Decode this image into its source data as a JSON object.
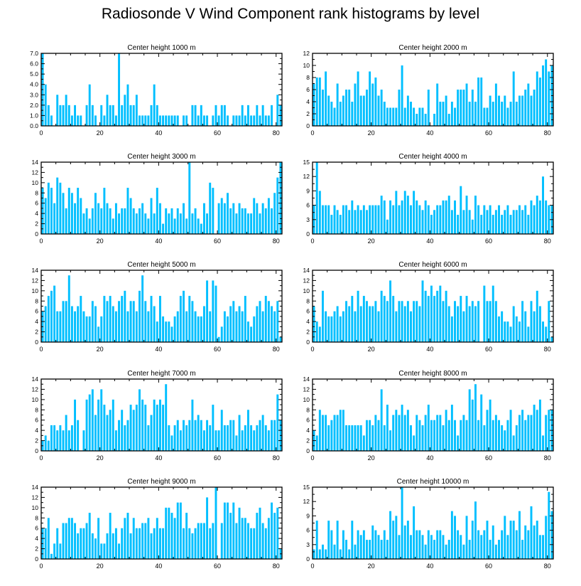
{
  "title": "Radiosonde V Wind Component rank histograms by level",
  "colors": {
    "bar": "#00bfff",
    "axis": "#000000",
    "background": "#ffffff"
  },
  "chart_data": [
    {
      "type": "bar",
      "title": "Center height 1000 m",
      "xlim": [
        0,
        82
      ],
      "xticks": [
        0,
        20,
        40,
        60,
        80
      ],
      "ylim": [
        0,
        7
      ],
      "yticks": [
        "0.0",
        "1.0",
        "2.0",
        "3.0",
        "4.0",
        "5.0",
        "6.0",
        "7.0"
      ],
      "ytick_values": [
        0,
        1,
        2,
        3,
        4,
        5,
        6,
        7
      ],
      "values": [
        7,
        4,
        2,
        1,
        0,
        3,
        2,
        2,
        3,
        2,
        1,
        2,
        1,
        1,
        0,
        2,
        4,
        2,
        1,
        0,
        2,
        1,
        3,
        2,
        2,
        1,
        7,
        2,
        3,
        4,
        2,
        2,
        3,
        1,
        1,
        1,
        1,
        2,
        4,
        2,
        1,
        1,
        1,
        1,
        1,
        1,
        1,
        0,
        1,
        1,
        0,
        2,
        2,
        1,
        2,
        1,
        1,
        0,
        1,
        2,
        1,
        2,
        2,
        1,
        0,
        1,
        1,
        1,
        2,
        1,
        2,
        1,
        1,
        2,
        1,
        2,
        1,
        1,
        2,
        0,
        3,
        2
      ]
    },
    {
      "type": "bar",
      "title": "Center height 2000 m",
      "xlim": [
        0,
        82
      ],
      "xticks": [
        0,
        20,
        40,
        60,
        80
      ],
      "ylim": [
        0,
        12
      ],
      "yticks": [
        "0",
        "2",
        "4",
        "6",
        "8",
        "10",
        "12"
      ],
      "ytick_values": [
        0,
        2,
        4,
        6,
        8,
        10,
        12
      ],
      "values": [
        7,
        8,
        8,
        6,
        9,
        5,
        4,
        3,
        7,
        4,
        5,
        6,
        6,
        4,
        7,
        9,
        5,
        5,
        6,
        9,
        7,
        8,
        5,
        6,
        4,
        3,
        3,
        3,
        3,
        6,
        10,
        3,
        5,
        4,
        3,
        2,
        3,
        3,
        2,
        6,
        0,
        2,
        7,
        4,
        4,
        5,
        2,
        4,
        3,
        6,
        6,
        6,
        7,
        4,
        6,
        4,
        8,
        8,
        3,
        3,
        5,
        4,
        7,
        5,
        4,
        5,
        3,
        4,
        9,
        4,
        5,
        5,
        6,
        7,
        5,
        6,
        9,
        8,
        10,
        11,
        9,
        10
      ]
    },
    {
      "type": "bar",
      "title": "Center height 3000 m",
      "xlim": [
        0,
        82
      ],
      "xticks": [
        0,
        20,
        40,
        60,
        80
      ],
      "ylim": [
        0,
        14
      ],
      "yticks": [
        "0",
        "2",
        "4",
        "6",
        "8",
        "10",
        "12",
        "14"
      ],
      "ytick_values": [
        0,
        2,
        4,
        6,
        8,
        10,
        12,
        14
      ],
      "values": [
        9,
        7,
        10,
        9,
        6,
        11,
        10,
        8,
        5,
        9,
        8,
        6,
        9,
        7,
        4,
        5,
        3,
        5,
        8,
        6,
        5,
        9,
        6,
        5,
        3,
        6,
        4,
        5,
        5,
        9,
        7,
        5,
        4,
        5,
        6,
        4,
        3,
        7,
        4,
        9,
        6,
        2,
        5,
        4,
        5,
        3,
        5,
        4,
        6,
        3,
        14,
        4,
        5,
        3,
        2,
        6,
        4,
        10,
        9,
        0,
        6,
        7,
        6,
        8,
        5,
        6,
        4,
        6,
        5,
        5,
        4,
        4,
        7,
        6,
        4,
        6,
        5,
        7,
        5,
        8,
        11,
        14
      ]
    },
    {
      "type": "bar",
      "title": "Center height 4000 m",
      "xlim": [
        0,
        82
      ],
      "xticks": [
        0,
        20,
        40,
        60,
        80
      ],
      "ylim": [
        0,
        15
      ],
      "yticks": [
        "0",
        "3",
        "6",
        "9",
        "12",
        "15"
      ],
      "ytick_values": [
        0,
        3,
        6,
        9,
        12,
        15
      ],
      "values": [
        6,
        15,
        9,
        6,
        6,
        6,
        4,
        6,
        5,
        4,
        6,
        6,
        5,
        7,
        5,
        6,
        5,
        6,
        5,
        6,
        6,
        6,
        6,
        8,
        7,
        3,
        7,
        6,
        9,
        6,
        7,
        9,
        8,
        6,
        9,
        7,
        6,
        5,
        7,
        6,
        4,
        5,
        6,
        6,
        7,
        7,
        8,
        5,
        7,
        4,
        10,
        5,
        8,
        5,
        3,
        8,
        6,
        4,
        6,
        5,
        6,
        4,
        5,
        6,
        4,
        5,
        6,
        4,
        5,
        5,
        6,
        5,
        6,
        4,
        7,
        6,
        8,
        7,
        12,
        7,
        6,
        6
      ]
    },
    {
      "type": "bar",
      "title": "Center height 5000 m",
      "xlim": [
        0,
        82
      ],
      "xticks": [
        0,
        20,
        40,
        60,
        80
      ],
      "ylim": [
        0,
        14
      ],
      "yticks": [
        "0",
        "2",
        "4",
        "6",
        "8",
        "10",
        "12",
        "14"
      ],
      "ytick_values": [
        0,
        2,
        4,
        6,
        8,
        10,
        12,
        14
      ],
      "values": [
        6,
        7,
        9,
        10,
        11,
        6,
        6,
        8,
        8,
        13,
        7,
        6,
        7,
        9,
        6,
        5,
        5,
        8,
        7,
        3,
        5,
        9,
        8,
        9,
        7,
        6,
        8,
        9,
        10,
        6,
        8,
        8,
        6,
        10,
        13,
        8,
        6,
        9,
        7,
        4,
        9,
        5,
        4,
        4,
        3,
        5,
        6,
        9,
        10,
        6,
        9,
        8,
        6,
        5,
        5,
        7,
        12,
        6,
        12,
        11,
        1,
        3,
        6,
        5,
        7,
        8,
        6,
        7,
        6,
        9,
        4,
        3,
        5,
        7,
        8,
        6,
        9,
        8,
        7,
        6,
        8,
        1
      ]
    },
    {
      "type": "bar",
      "title": "Center height 6000 m",
      "xlim": [
        0,
        82
      ],
      "xticks": [
        0,
        20,
        40,
        60,
        80
      ],
      "ylim": [
        0,
        14
      ],
      "yticks": [
        "0",
        "2",
        "4",
        "6",
        "8",
        "10",
        "12",
        "14"
      ],
      "ytick_values": [
        0,
        2,
        4,
        6,
        8,
        10,
        12,
        14
      ],
      "values": [
        7,
        4,
        3,
        10,
        6,
        5,
        5,
        6,
        7,
        5,
        6,
        8,
        7,
        9,
        6,
        10,
        7,
        9,
        8,
        7,
        7,
        8,
        6,
        10,
        9,
        8,
        12,
        9,
        6,
        8,
        8,
        7,
        8,
        6,
        8,
        8,
        7,
        12,
        10,
        9,
        11,
        9,
        10,
        11,
        8,
        10,
        7,
        5,
        8,
        7,
        9,
        6,
        9,
        7,
        8,
        7,
        8,
        0,
        11,
        8,
        8,
        11,
        8,
        5,
        6,
        4,
        4,
        3,
        7,
        5,
        4,
        8,
        6,
        3,
        8,
        6,
        10,
        7,
        4,
        3,
        8,
        1
      ]
    },
    {
      "type": "bar",
      "title": "Center height 7000 m",
      "xlim": [
        0,
        82
      ],
      "xticks": [
        0,
        20,
        40,
        60,
        80
      ],
      "ylim": [
        0,
        14
      ],
      "yticks": [
        "0",
        "2",
        "4",
        "6",
        "8",
        "10",
        "12",
        "14"
      ],
      "ytick_values": [
        0,
        2,
        4,
        6,
        8,
        10,
        12,
        14
      ],
      "values": [
        2,
        3,
        2,
        5,
        5,
        4,
        5,
        4,
        7,
        4,
        5,
        10,
        6,
        0,
        4,
        10,
        11,
        12,
        7,
        10,
        12,
        9,
        7,
        8,
        10,
        4,
        6,
        8,
        5,
        6,
        9,
        8,
        9,
        12,
        10,
        9,
        5,
        7,
        10,
        9,
        10,
        9,
        13,
        5,
        3,
        5,
        6,
        4,
        6,
        5,
        6,
        10,
        6,
        7,
        6,
        4,
        6,
        5,
        9,
        4,
        4,
        8,
        5,
        5,
        6,
        6,
        3,
        7,
        4,
        5,
        8,
        5,
        4,
        5,
        6,
        7,
        5,
        4,
        6,
        6,
        11,
        6
      ]
    },
    {
      "type": "bar",
      "title": "Center height 8000 m",
      "xlim": [
        0,
        82
      ],
      "xticks": [
        0,
        20,
        40,
        60,
        80
      ],
      "ylim": [
        0,
        14
      ],
      "yticks": [
        "0",
        "2",
        "4",
        "6",
        "8",
        "10",
        "12",
        "14"
      ],
      "ytick_values": [
        0,
        2,
        4,
        6,
        8,
        10,
        12,
        14
      ],
      "values": [
        4,
        3,
        8,
        7,
        7,
        5,
        6,
        7,
        7,
        8,
        8,
        5,
        5,
        5,
        5,
        5,
        5,
        3,
        6,
        6,
        5,
        7,
        6,
        12,
        5,
        9,
        4,
        7,
        8,
        7,
        9,
        7,
        8,
        5,
        3,
        7,
        6,
        5,
        7,
        9,
        6,
        6,
        7,
        7,
        5,
        8,
        6,
        9,
        6,
        3,
        6,
        7,
        6,
        12,
        10,
        13,
        6,
        11,
        5,
        8,
        10,
        6,
        7,
        6,
        5,
        4,
        6,
        8,
        3,
        5,
        7,
        8,
        6,
        7,
        7,
        9,
        8,
        10,
        3,
        7,
        8,
        8
      ]
    },
    {
      "type": "bar",
      "title": "Center height 9000 m",
      "xlim": [
        0,
        82
      ],
      "xticks": [
        0,
        20,
        40,
        60,
        80
      ],
      "ylim": [
        0,
        14
      ],
      "yticks": [
        "0",
        "2",
        "4",
        "6",
        "8",
        "10",
        "12",
        "14"
      ],
      "ytick_values": [
        0,
        2,
        4,
        6,
        8,
        10,
        12,
        14
      ],
      "values": [
        6,
        6,
        8,
        1,
        3,
        6,
        3,
        7,
        7,
        8,
        8,
        7,
        5,
        6,
        6,
        7,
        9,
        5,
        4,
        8,
        3,
        3,
        5,
        9,
        5,
        6,
        3,
        6,
        8,
        9,
        5,
        8,
        6,
        6,
        7,
        7,
        8,
        5,
        6,
        8,
        6,
        6,
        10,
        10,
        9,
        8,
        11,
        11,
        6,
        9,
        6,
        5,
        6,
        7,
        7,
        7,
        12,
        6,
        7,
        14,
        0,
        7,
        11,
        11,
        9,
        11,
        7,
        10,
        8,
        8,
        7,
        6,
        6,
        9,
        10,
        7,
        6,
        8,
        11,
        9,
        10,
        2
      ]
    },
    {
      "type": "bar",
      "title": "Center height 10000 m",
      "xlim": [
        0,
        82
      ],
      "xticks": [
        0,
        20,
        40,
        60,
        80
      ],
      "ylim": [
        0,
        15
      ],
      "yticks": [
        "0",
        "3",
        "6",
        "9",
        "12",
        "15"
      ],
      "ytick_values": [
        0,
        3,
        6,
        9,
        12,
        15
      ],
      "values": [
        2,
        8,
        2,
        3,
        2,
        8,
        6,
        3,
        8,
        2,
        6,
        4,
        2,
        8,
        3,
        6,
        5,
        6,
        4,
        4,
        7,
        6,
        5,
        4,
        6,
        4,
        10,
        8,
        9,
        5,
        15,
        7,
        8,
        5,
        11,
        6,
        6,
        5,
        3,
        6,
        5,
        4,
        6,
        6,
        5,
        3,
        4,
        10,
        9,
        6,
        5,
        3,
        9,
        4,
        8,
        12,
        6,
        5,
        6,
        8,
        4,
        7,
        3,
        4,
        6,
        9,
        5,
        8,
        8,
        6,
        10,
        4,
        7,
        6,
        11,
        7,
        8,
        5,
        5,
        9,
        14,
        10
      ]
    }
  ]
}
